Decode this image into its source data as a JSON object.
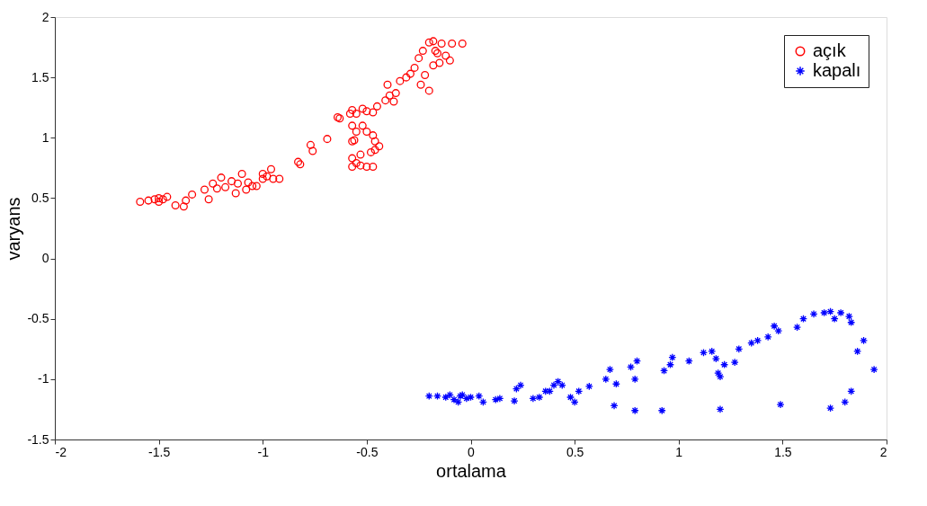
{
  "chart_data": {
    "type": "scatter",
    "xlabel": "ortalama",
    "ylabel": "varyans",
    "xlim": [
      -2,
      2
    ],
    "ylim": [
      -1.5,
      2
    ],
    "xticks": [
      -2,
      -1.5,
      -1,
      -0.5,
      0,
      0.5,
      1,
      1.5,
      2
    ],
    "yticks": [
      -1.5,
      -1,
      -0.5,
      0,
      0.5,
      1,
      1.5,
      2
    ],
    "grid": false,
    "legend": "top right",
    "series": [
      {
        "name": "açık",
        "color": "#ff0000",
        "marker": "circle",
        "x": [
          -1.59,
          -1.55,
          -1.52,
          -1.5,
          -1.48,
          -1.46,
          -1.5,
          -1.42,
          -1.38,
          -1.37,
          -1.34,
          -1.28,
          -1.26,
          -1.24,
          -1.22,
          -1.2,
          -1.18,
          -1.15,
          -1.13,
          -1.12,
          -1.1,
          -1.08,
          -1.07,
          -1.05,
          -1.03,
          -1.0,
          -1.0,
          -0.98,
          -0.96,
          -0.95,
          -0.92,
          -0.83,
          -0.82,
          -0.77,
          -0.76,
          -0.69,
          -0.64,
          -0.63,
          -0.58,
          -0.57,
          -0.55,
          -0.52,
          -0.5,
          -0.47,
          -0.45,
          -0.41,
          -0.4,
          -0.39,
          -0.37,
          -0.36,
          -0.34,
          -0.31,
          -0.29,
          -0.27,
          -0.25,
          -0.24,
          -0.23,
          -0.2,
          -0.18,
          -0.17,
          -0.16,
          -0.14,
          -0.12,
          -0.1,
          -0.09,
          -0.04,
          -0.2,
          -0.22,
          -0.15,
          -0.18,
          -0.57,
          -0.55,
          -0.52,
          -0.5,
          -0.47,
          -0.46,
          -0.44,
          -0.56,
          -0.57,
          -0.57,
          -0.55,
          -0.53,
          -0.53,
          -0.5,
          -0.47,
          -0.46,
          -0.57,
          -0.48
        ],
        "values": [
          0.47,
          0.48,
          0.49,
          0.5,
          0.49,
          0.51,
          0.47,
          0.44,
          0.43,
          0.48,
          0.53,
          0.57,
          0.49,
          0.62,
          0.58,
          0.67,
          0.59,
          0.64,
          0.54,
          0.62,
          0.7,
          0.57,
          0.63,
          0.6,
          0.6,
          0.66,
          0.7,
          0.68,
          0.74,
          0.66,
          0.66,
          0.8,
          0.78,
          0.94,
          0.89,
          0.99,
          1.17,
          1.16,
          1.2,
          1.23,
          1.2,
          1.24,
          1.22,
          1.21,
          1.26,
          1.31,
          1.44,
          1.35,
          1.3,
          1.37,
          1.47,
          1.5,
          1.53,
          1.58,
          1.66,
          1.44,
          1.72,
          1.79,
          1.8,
          1.72,
          1.7,
          1.78,
          1.68,
          1.64,
          1.78,
          1.78,
          1.39,
          1.52,
          1.62,
          1.6,
          1.1,
          1.05,
          1.1,
          1.05,
          1.02,
          0.97,
          0.93,
          0.98,
          0.97,
          0.83,
          0.79,
          0.86,
          0.77,
          0.76,
          0.76,
          0.9,
          0.76,
          0.88
        ]
      },
      {
        "name": "kapalı",
        "color": "#0000ff",
        "marker": "cross",
        "x": [
          -0.2,
          -0.16,
          -0.12,
          -0.1,
          -0.08,
          -0.06,
          -0.05,
          -0.04,
          -0.02,
          0.0,
          0.04,
          0.06,
          0.12,
          0.14,
          0.21,
          0.22,
          0.24,
          0.3,
          0.33,
          0.36,
          0.38,
          0.4,
          0.42,
          0.44,
          0.48,
          0.5,
          0.52,
          0.57,
          0.65,
          0.67,
          0.69,
          0.7,
          0.77,
          0.79,
          0.8,
          0.79,
          0.92,
          0.93,
          0.96,
          0.97,
          1.05,
          1.12,
          1.16,
          1.18,
          1.19,
          1.2,
          1.22,
          1.27,
          1.29,
          1.35,
          1.38,
          1.43,
          1.46,
          1.48,
          1.49,
          1.57,
          1.6,
          1.65,
          1.7,
          1.73,
          1.73,
          1.75,
          1.78,
          1.8,
          1.82,
          1.83,
          1.83,
          1.86,
          1.89,
          1.94,
          1.2
        ],
        "values": [
          -1.14,
          -1.14,
          -1.15,
          -1.13,
          -1.17,
          -1.19,
          -1.14,
          -1.13,
          -1.16,
          -1.15,
          -1.14,
          -1.19,
          -1.17,
          -1.16,
          -1.18,
          -1.08,
          -1.05,
          -1.16,
          -1.15,
          -1.1,
          -1.1,
          -1.05,
          -1.02,
          -1.05,
          -1.15,
          -1.19,
          -1.1,
          -1.06,
          -1.0,
          -0.92,
          -1.22,
          -1.04,
          -0.9,
          -1.26,
          -0.85,
          -1.0,
          -1.26,
          -0.93,
          -0.88,
          -0.82,
          -0.85,
          -0.78,
          -0.77,
          -0.83,
          -0.95,
          -1.25,
          -0.88,
          -0.86,
          -0.75,
          -0.7,
          -0.68,
          -0.65,
          -0.56,
          -0.6,
          -1.21,
          -0.57,
          -0.5,
          -0.46,
          -0.45,
          -0.44,
          -1.24,
          -0.5,
          -0.45,
          -1.19,
          -0.48,
          -1.1,
          -0.53,
          -0.77,
          -0.68,
          -0.92,
          -0.98
        ]
      }
    ]
  }
}
